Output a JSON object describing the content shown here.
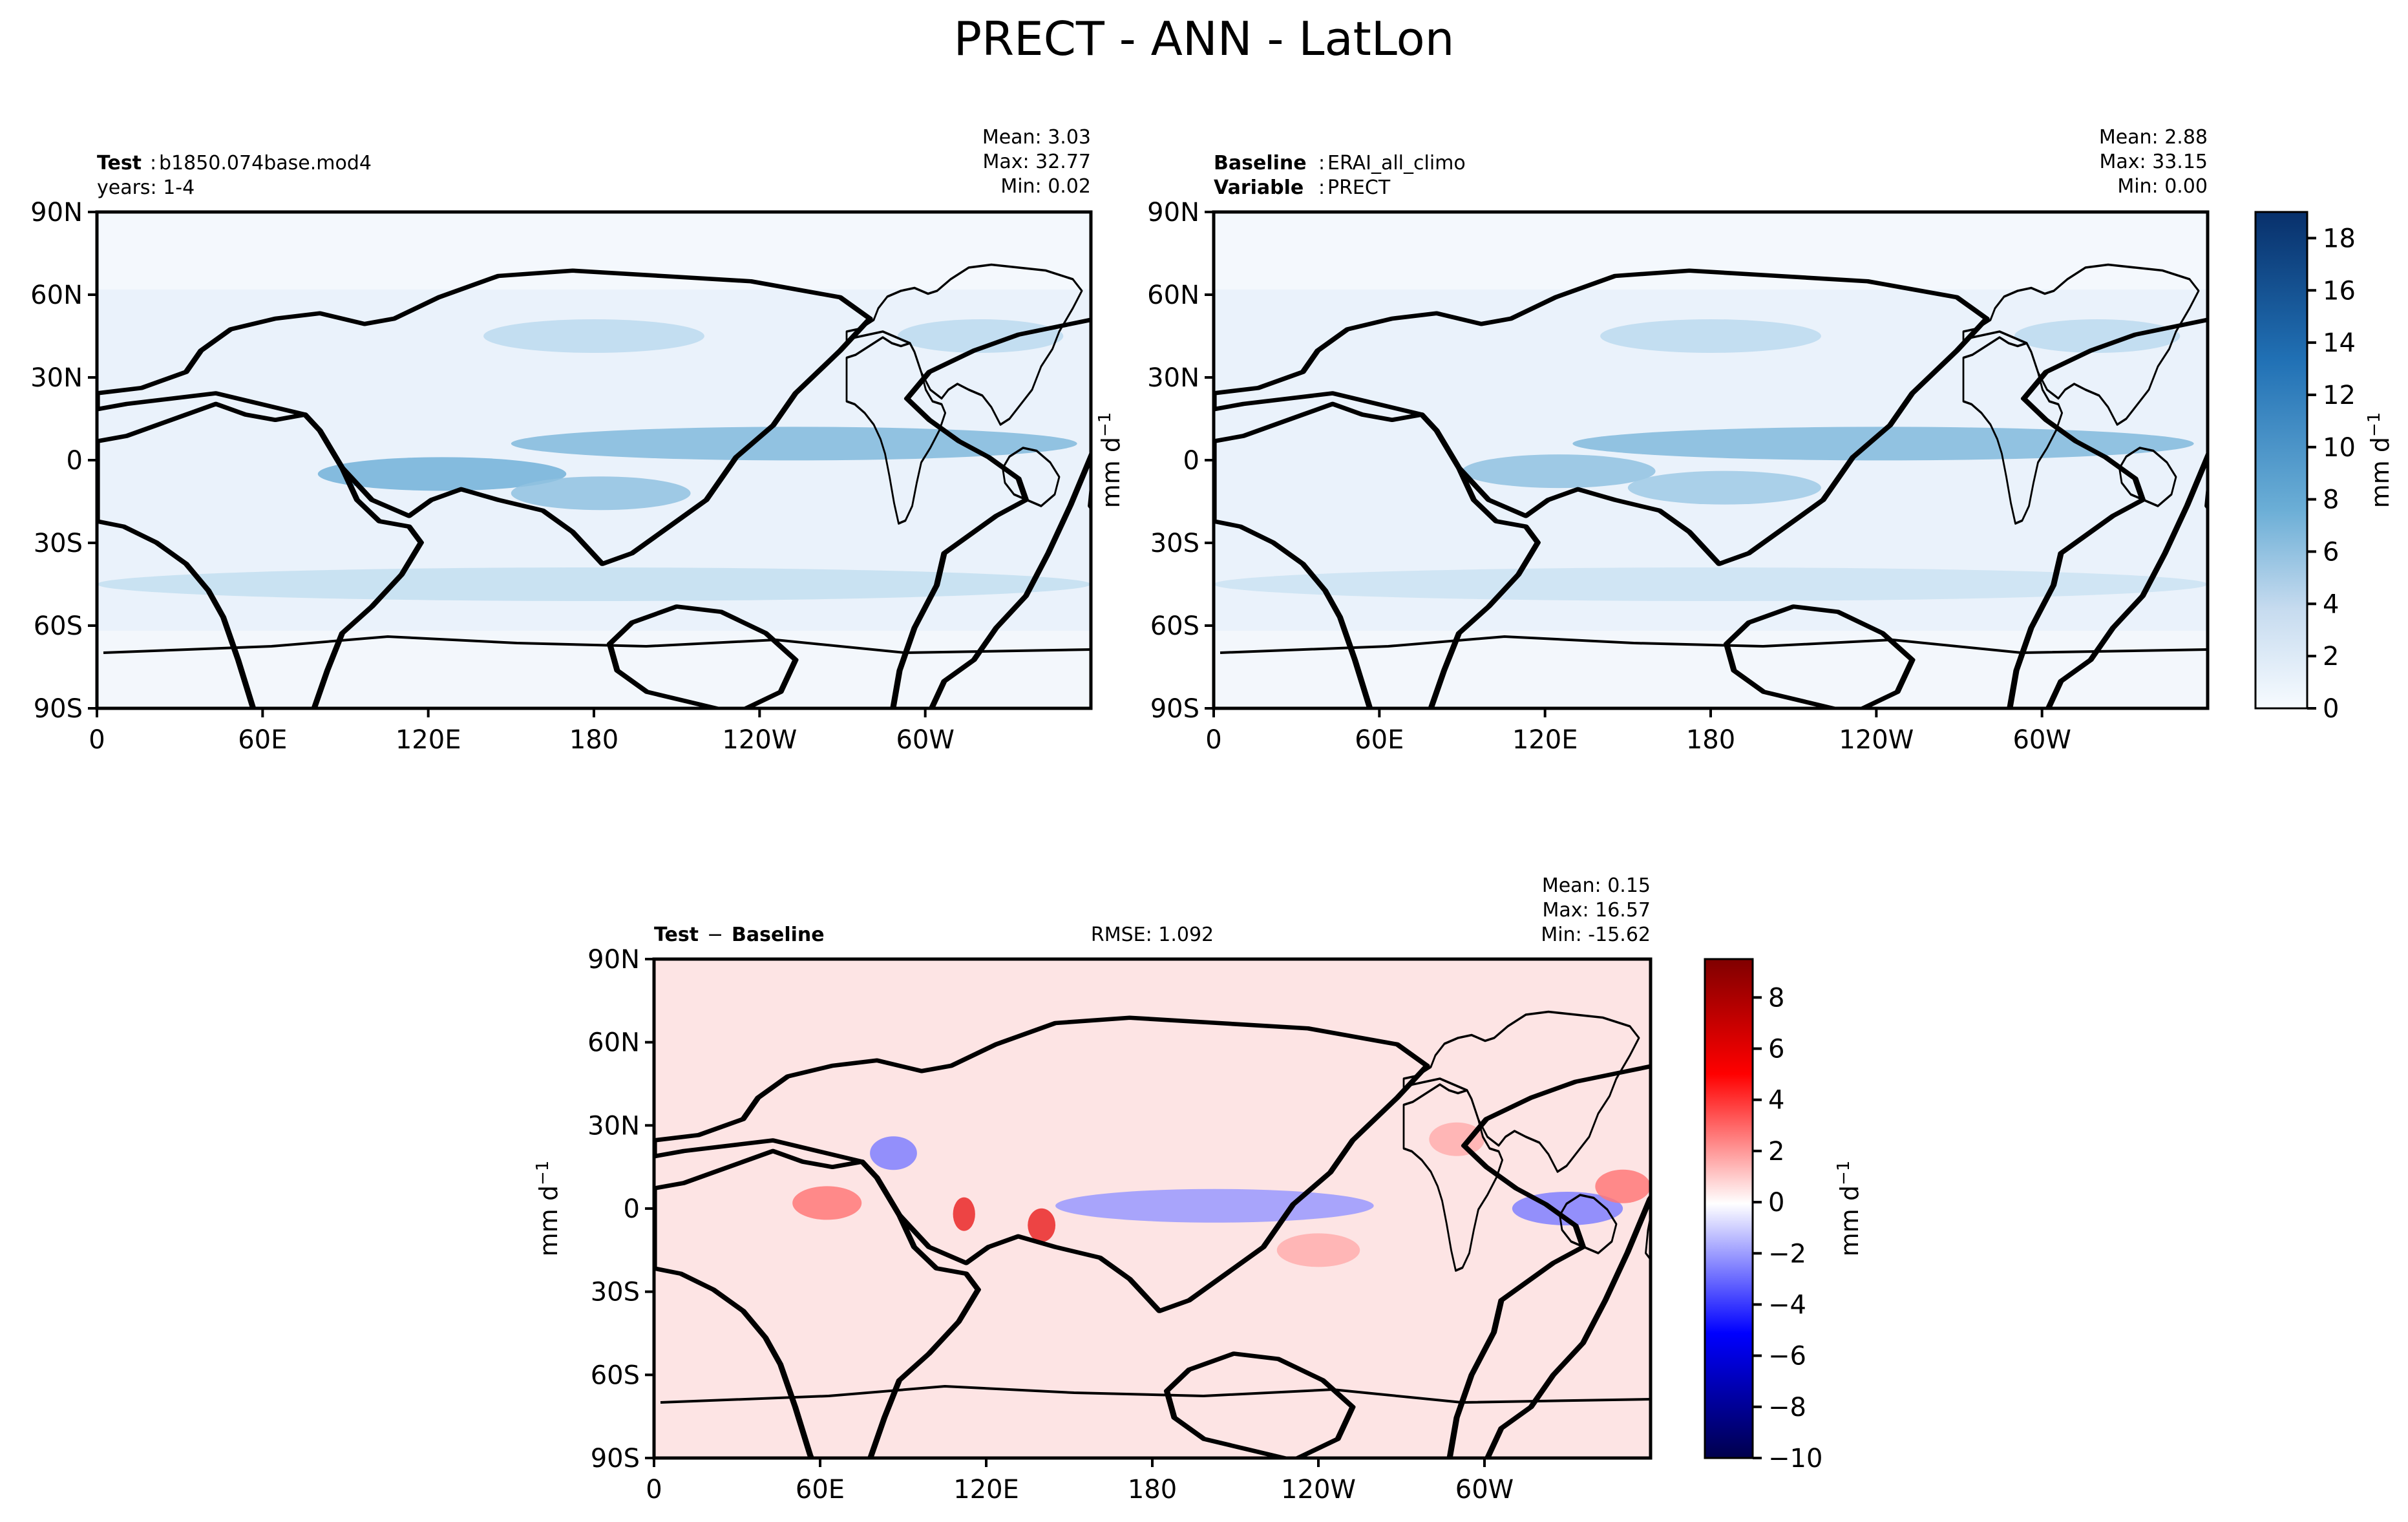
{
  "figure": {
    "title": "PRECT - ANN - LatLon"
  },
  "chart_data": [
    {
      "type": "heatmap",
      "panel": "test",
      "header": {
        "label_bold": "Test",
        "label_value": "b1850.074base.mod4",
        "line2": "years: 1-4"
      },
      "stats": {
        "mean": "Mean:  3.03",
        "max": "Max: 32.77",
        "min": "Min:  0.02"
      },
      "x_ticks": [
        "0",
        "60E",
        "120E",
        "180",
        "120W",
        "60W"
      ],
      "y_ticks": [
        "90N",
        "60N",
        "30N",
        "0",
        "30S",
        "60S",
        "90S"
      ],
      "xlim": [
        0,
        360
      ],
      "ylim": [
        -90,
        90
      ],
      "colormap": "Blues",
      "features": [
        {
          "lat": 6,
          "lon_start": 150,
          "lon_end": 355,
          "value": 8
        },
        {
          "lat": -5,
          "lon_start": 80,
          "lon_end": 170,
          "value": 9
        },
        {
          "lat": -12,
          "lon_start": 150,
          "lon_end": 215,
          "value": 7
        },
        {
          "lat": 45,
          "lon_start": 140,
          "lon_end": 220,
          "value": 4
        },
        {
          "lat": 45,
          "lon_start": 290,
          "lon_end": 350,
          "value": 4
        },
        {
          "lat": -45,
          "lon_start": 0,
          "lon_end": 360,
          "value": 3.5
        }
      ]
    },
    {
      "type": "heatmap",
      "panel": "baseline",
      "header": {
        "label_bold": "Baseline",
        "label_value": "ERAI_all_climo",
        "label2_bold": "Variable",
        "label2_value": "PRECT"
      },
      "stats": {
        "mean": "Mean:  2.88",
        "max": "Max: 33.15",
        "min": "Min:  0.00"
      },
      "x_ticks": [
        "0",
        "60E",
        "120E",
        "180",
        "120W",
        "60W"
      ],
      "y_ticks": [
        "90N",
        "60N",
        "30N",
        "0",
        "30S",
        "60S",
        "90S"
      ],
      "xlim": [
        0,
        360
      ],
      "ylim": [
        -90,
        90
      ],
      "colormap": "Blues",
      "colorbar": {
        "label": "mm d",
        "label_sup": "−1",
        "ticks": [
          "0",
          "2",
          "4",
          "6",
          "8",
          "10",
          "12",
          "14",
          "16",
          "18"
        ],
        "range": [
          0,
          19
        ]
      },
      "features": [
        {
          "lat": 6,
          "lon_start": 130,
          "lon_end": 355,
          "value": 8
        },
        {
          "lat": -4,
          "lon_start": 90,
          "lon_end": 160,
          "value": 7
        },
        {
          "lat": -10,
          "lon_start": 150,
          "lon_end": 220,
          "value": 6
        },
        {
          "lat": 45,
          "lon_start": 140,
          "lon_end": 220,
          "value": 4
        },
        {
          "lat": 45,
          "lon_start": 290,
          "lon_end": 350,
          "value": 4
        },
        {
          "lat": -45,
          "lon_start": 0,
          "lon_end": 360,
          "value": 3
        }
      ]
    },
    {
      "type": "heatmap",
      "panel": "difference",
      "header": {
        "label_bold": "Test",
        "label_minus": "−",
        "label_bold2": "Baseline",
        "rmse": "RMSE: 1.092"
      },
      "stats": {
        "mean": "Mean:  0.15",
        "max": "Max: 16.57",
        "min": "Min: -15.62"
      },
      "x_ticks": [
        "0",
        "60E",
        "120E",
        "180",
        "120W",
        "60W"
      ],
      "y_ticks": [
        "90N",
        "60N",
        "30N",
        "0",
        "30S",
        "60S",
        "90S"
      ],
      "xlim": [
        0,
        360
      ],
      "ylim": [
        -90,
        90
      ],
      "colormap": "seismic",
      "colorbar": {
        "label": "mm d",
        "label_sup": "−1",
        "ticks": [
          "−10",
          "−8",
          "−6",
          "−4",
          "−2",
          "0",
          "2",
          "4",
          "6",
          "8"
        ],
        "range": [
          -10,
          9.5
        ]
      },
      "features": [
        {
          "lat": 1,
          "lon_start": 145,
          "lon_end": 260,
          "value": -4
        },
        {
          "lat": 0,
          "lon_start": 310,
          "lon_end": 350,
          "value": -5
        },
        {
          "lat": 8,
          "lon_start": 340,
          "lon_end": 360,
          "value": 5
        },
        {
          "lat": 2,
          "lon_start": 50,
          "lon_end": 75,
          "value": 5
        },
        {
          "lat": -2,
          "lon_start": 108,
          "lon_end": 116,
          "value": 8
        },
        {
          "lat": -6,
          "lon_start": 135,
          "lon_end": 145,
          "value": 8
        },
        {
          "lat": 20,
          "lon_start": 78,
          "lon_end": 95,
          "value": -5
        },
        {
          "lat": -15,
          "lon_start": 225,
          "lon_end": 255,
          "value": 3
        },
        {
          "lat": 25,
          "lon_start": 280,
          "lon_end": 300,
          "value": 3
        }
      ]
    }
  ]
}
